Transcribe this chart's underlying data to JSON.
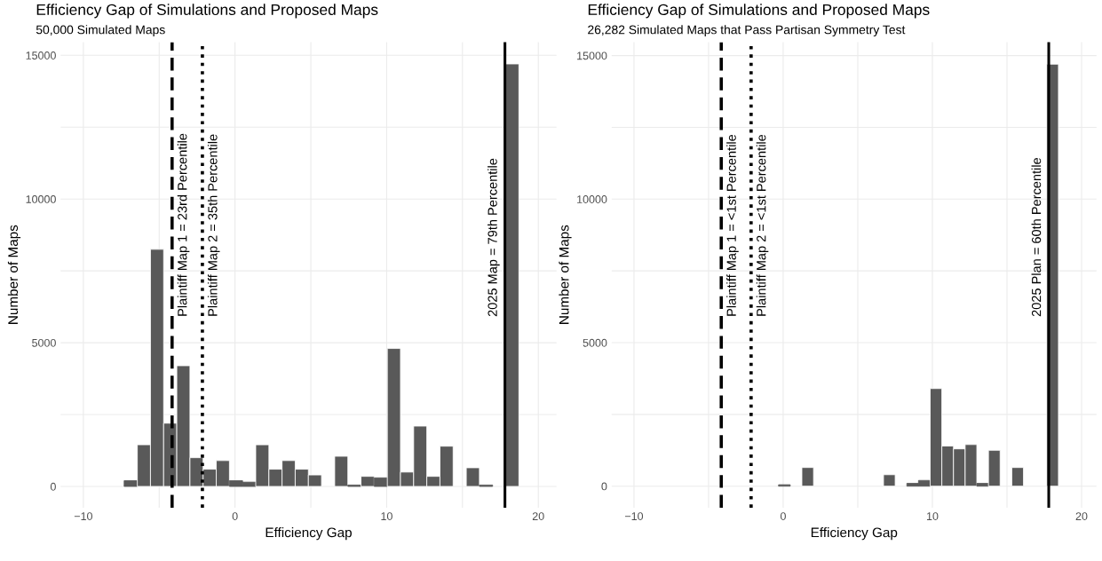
{
  "chart_data": [
    {
      "type": "histogram",
      "title": "Efficiency Gap of Simulations and Proposed Maps",
      "subtitle": "50,000 Simulated Maps",
      "xlabel": "Efficiency Gap",
      "ylabel": "Number of Maps",
      "color": "#595959",
      "bins": [
        -7.31,
        -6.442,
        -5.575,
        -4.707,
        -3.839,
        -2.972,
        -2.104,
        -1.236,
        -0.368,
        0.499,
        1.367,
        2.235,
        3.102,
        3.97,
        4.838,
        5.705,
        6.573,
        7.441,
        8.308,
        9.176,
        10.044,
        10.911,
        11.779,
        12.647,
        13.514,
        14.382,
        15.25,
        16.117,
        16.985,
        17.853,
        18.72
      ],
      "values": [
        200,
        1450,
        8250,
        2200,
        4200,
        1000,
        600,
        900,
        200,
        150,
        1450,
        600,
        900,
        600,
        400,
        0,
        1050,
        50,
        350,
        300,
        4800,
        500,
        2100,
        350,
        1400,
        0,
        650,
        50,
        0,
        14700
      ],
      "xlim": [
        -11.5,
        21.2
      ],
      "xticks": [
        -10,
        {
          "value": -5,
          "label": null
        },
        0,
        {
          "value": 5,
          "label": null
        },
        10,
        {
          "value": 15,
          "label": null
        },
        20
      ],
      "ylim": [
        -740,
        15460
      ],
      "yticks": [
        0,
        {
          "value": 2500,
          "label": null
        },
        5000,
        {
          "value": 7500,
          "label": null
        },
        10000,
        {
          "value": 12500,
          "label": null
        },
        15000
      ],
      "grid": true,
      "ref_lines": [
        {
          "axis": "x",
          "value": -4.15,
          "line_style": "dashed",
          "color": "#000000"
        },
        {
          "axis": "x",
          "value": -2.15,
          "line_style": "dotted",
          "color": "#000000"
        },
        {
          "axis": "x",
          "value": 17.8,
          "line_style": "solid",
          "color": "#000000"
        }
      ],
      "annotations": [
        {
          "text": "Plaintiff Map 1 = 23rd Percentile",
          "x": -4.15
        },
        {
          "text": "Plaintiff Map 2 = 35th Percentile",
          "x": -2.15
        },
        {
          "text": "2025 Map = 79th Percentile",
          "x": 17.8
        }
      ]
    },
    {
      "type": "histogram",
      "title": "Efficiency Gap of Simulations and Proposed Maps",
      "subtitle": "26,282 Simulated Maps that Pass Partisan Symmetry Test",
      "xlabel": "Efficiency Gap",
      "ylabel": "Number of Maps",
      "color": "#595959",
      "bins": [
        -0.31,
        0.472,
        1.253,
        2.035,
        2.817,
        3.598,
        4.38,
        5.162,
        5.944,
        6.725,
        7.507,
        8.289,
        9.07,
        9.852,
        10.634,
        11.415,
        12.197,
        12.979,
        13.76,
        14.542,
        15.324,
        16.106,
        16.887,
        17.669,
        18.45
      ],
      "values": [
        50,
        0,
        650,
        0,
        0,
        0,
        0,
        0,
        0,
        400,
        0,
        100,
        200,
        3400,
        1400,
        1300,
        1450,
        100,
        1250,
        0,
        650,
        0,
        0,
        14700
      ],
      "xlim": [
        -11.5,
        21.0
      ],
      "xticks": [
        -10,
        {
          "value": -5,
          "label": null
        },
        0,
        {
          "value": 5,
          "label": null
        },
        10,
        {
          "value": 15,
          "label": null
        },
        20
      ],
      "ylim": [
        -750,
        15470
      ],
      "yticks": [
        0,
        {
          "value": 2500,
          "label": null
        },
        5000,
        {
          "value": 7500,
          "label": null
        },
        10000,
        {
          "value": 12500,
          "label": null
        },
        15000
      ],
      "grid": true,
      "ref_lines": [
        {
          "axis": "x",
          "value": -4.15,
          "line_style": "dashed",
          "color": "#000000"
        },
        {
          "axis": "x",
          "value": -2.15,
          "line_style": "dotted",
          "color": "#000000"
        },
        {
          "axis": "x",
          "value": 17.8,
          "line_style": "solid",
          "color": "#000000"
        }
      ],
      "annotations": [
        {
          "text": "Plaintiff Map 1 = <1st Percentile",
          "x": -4.15
        },
        {
          "text": "Plaintiff Map 2 = <1st Percentile",
          "x": -2.15
        },
        {
          "text": "2025 Plan = 60th Percentile",
          "x": 17.8
        }
      ]
    }
  ]
}
